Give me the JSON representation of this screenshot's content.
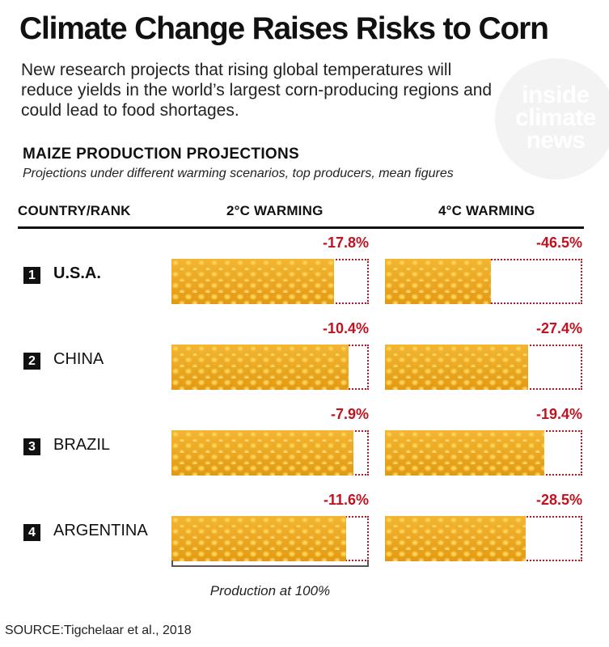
{
  "title": "Climate Change Raises Risks to Corn",
  "dek": "New research projects that rising global temperatures will reduce yields in the world’s largest corn-producing regions and could lead to food shortages.",
  "logo": {
    "line1": "inside",
    "line2": "climate",
    "line3": "news"
  },
  "section": {
    "title": "MAIZE PRODUCTION PROJECTIONS",
    "subtitle": "Projections under different warming scenarios, top producers, mean figures"
  },
  "headers": {
    "country": "COUNTRY/RANK",
    "warming2": "2°C WARMING",
    "warming4": "4°C WARMING"
  },
  "rows": [
    {
      "rank": "1",
      "country": "U.S.A.",
      "pct2_label": "-17.8%",
      "pct4_label": "-46.5%"
    },
    {
      "rank": "2",
      "country": "CHINA",
      "pct2_label": "-10.4%",
      "pct4_label": "-27.4%"
    },
    {
      "rank": "3",
      "country": "BRAZIL",
      "pct2_label": "-7.9%",
      "pct4_label": "-19.4%"
    },
    {
      "rank": "4",
      "country": "ARGENTINA",
      "pct2_label": "-11.6%",
      "pct4_label": "-28.5%"
    }
  ],
  "bracket_label": "Production at 100%",
  "source": "SOURCE:Tigchelaar et al., 2018",
  "chart_data": {
    "type": "bar",
    "categories": [
      "U.S.A.",
      "CHINA",
      "BRAZIL",
      "ARGENTINA"
    ],
    "series": [
      {
        "name": "2°C WARMING",
        "values": [
          -17.8,
          -10.4,
          -7.9,
          -11.6
        ]
      },
      {
        "name": "4°C WARMING",
        "values": [
          -46.5,
          -27.4,
          -19.4,
          -28.5
        ]
      }
    ],
    "unit": "%",
    "baseline": 100,
    "colors": {
      "corn": "#e8a417",
      "loss_outline": "#c1121f",
      "loss_text": "#c1121f"
    }
  }
}
